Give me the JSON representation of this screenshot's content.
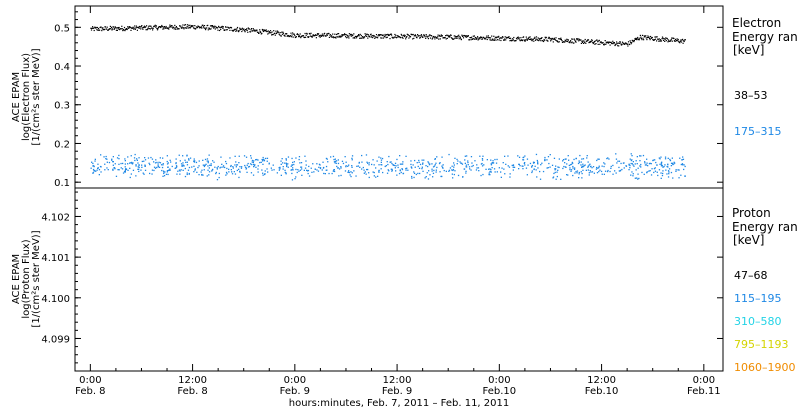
{
  "chart_data": [
    {
      "type": "scatter",
      "instrument": "ACE EPAM",
      "ylabel_lines": [
        "ACE EPAM",
        "log(Electron Flux)",
        "[1/(cm²s ster MeV)]"
      ],
      "ylim": [
        0.085,
        0.555
      ],
      "y_ticks": [
        "0.1",
        "0.2",
        "0.3",
        "0.4",
        "0.5"
      ],
      "legend": {
        "title": [
          "Electron",
          "Energy ran",
          "[keV]"
        ],
        "entries": [
          {
            "label": "38–53",
            "color": "#000000"
          },
          {
            "label": "175–315",
            "color": "#1e88e5"
          }
        ]
      },
      "series": [
        {
          "label": "38–53",
          "color": "#000000",
          "x_range_hours": [
            0,
            46.5
          ],
          "keypoints": [
            [
              0,
              0.497
            ],
            [
              8,
              0.503
            ],
            [
              12,
              0.495
            ],
            [
              14,
              0.488
            ],
            [
              16,
              0.481
            ],
            [
              24,
              0.478
            ],
            [
              30,
              0.475
            ],
            [
              36,
              0.47
            ],
            [
              40,
              0.462
            ],
            [
              42,
              0.458
            ],
            [
              43,
              0.476
            ],
            [
              46.5,
              0.465
            ]
          ]
        },
        {
          "label": "175–315",
          "color": "#1e88e5",
          "x_range_hours": [
            0,
            46.5
          ],
          "mean": 0.142,
          "spread": 0.035
        }
      ]
    },
    {
      "type": "scatter",
      "instrument": "ACE EPAM",
      "ylabel_lines": [
        "ACE EPAM",
        "log(Proton Flux)",
        "[1/(cm²s ster MeV)]"
      ],
      "ylim": [
        4.0982,
        4.1027
      ],
      "y_ticks": [
        "4.099",
        "4.100",
        "4.101",
        "4.102"
      ],
      "legend": {
        "title": [
          "Proton",
          "Energy ran",
          "[keV]"
        ],
        "entries": [
          {
            "label": "47–68",
            "color": "#000000"
          },
          {
            "label": "115–195",
            "color": "#1e88e5"
          },
          {
            "label": "310–580",
            "color": "#22d3e6"
          },
          {
            "label": "795–1193",
            "color": "#d4d400"
          },
          {
            "label": "1060–1900",
            "color": "#f08c00"
          }
        ]
      },
      "series": []
    }
  ],
  "x_axis": {
    "xlim_hours": [
      -1.2,
      49.5
    ],
    "ticks": [
      {
        "hour": 0,
        "time": "0:00",
        "date": "Feb. 8"
      },
      {
        "hour": 8,
        "time": "12:00",
        "date": "Feb. 8"
      },
      {
        "hour": 16,
        "time": "0:00",
        "date": "Feb. 9"
      },
      {
        "hour": 24,
        "time": "12:00",
        "date": "Feb. 9"
      },
      {
        "hour": 32,
        "time": "0:00",
        "date": "Feb.10"
      },
      {
        "hour": 40,
        "time": "12:00",
        "date": "Feb.10"
      },
      {
        "hour": 48,
        "time": "0:00",
        "date": "Feb.11"
      }
    ],
    "label": "hours:minutes, Feb.  7, 2011 – Feb. 11, 2011"
  }
}
